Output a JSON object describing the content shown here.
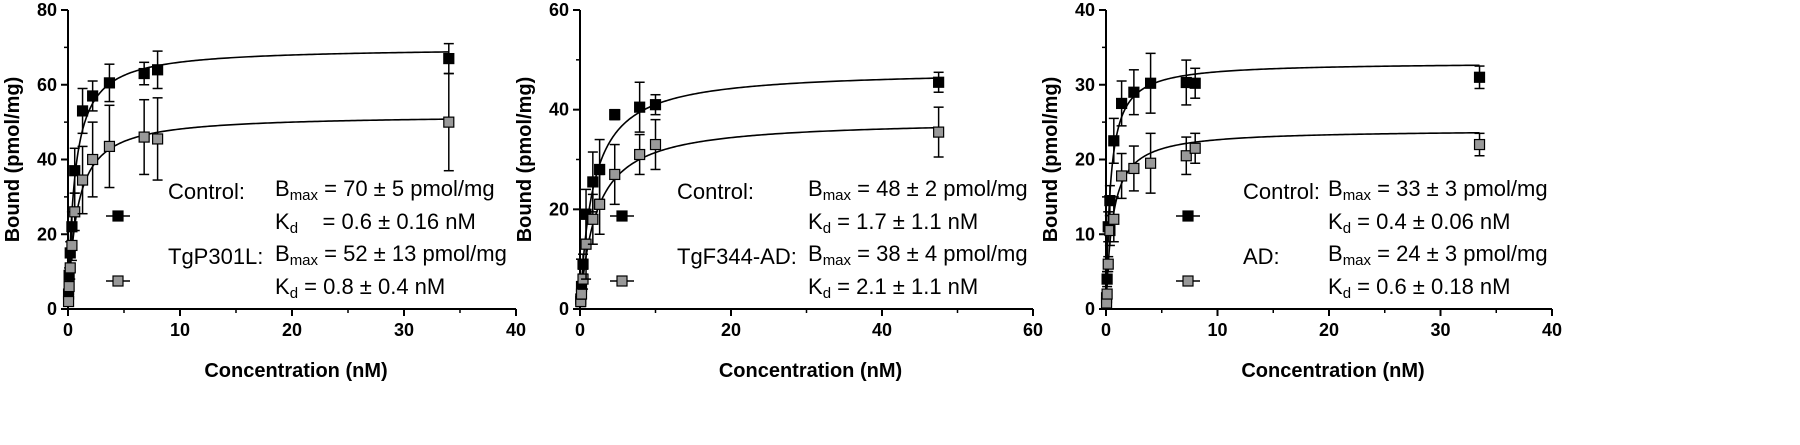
{
  "chart_data": [
    {
      "type": "scatter",
      "xlabel": "Concentration (nM)",
      "ylabel": "Bound (pmol/mg)",
      "xlim": [
        0,
        40
      ],
      "ylim": [
        0,
        80
      ],
      "xticks": [
        "0",
        "10",
        "20",
        "30",
        "40"
      ],
      "yticks": [
        "0",
        "20",
        "40",
        "60",
        "80"
      ],
      "series": [
        {
          "name": "Control:",
          "marker_color": "#000000",
          "fit": {
            "bmax": 70,
            "kd": 0.6
          },
          "points": [
            {
              "x": 0.05,
              "y": 4,
              "err": 1
            },
            {
              "x": 0.1,
              "y": 9,
              "err": 2
            },
            {
              "x": 0.2,
              "y": 15,
              "err": 3
            },
            {
              "x": 0.35,
              "y": 22,
              "err": 4
            },
            {
              "x": 0.6,
              "y": 37,
              "err": 6
            },
            {
              "x": 1.3,
              "y": 53,
              "err": 6
            },
            {
              "x": 2.2,
              "y": 57,
              "err": 4
            },
            {
              "x": 3.7,
              "y": 60.5,
              "err": 5
            },
            {
              "x": 6.8,
              "y": 63,
              "err": 3
            },
            {
              "x": 8,
              "y": 64,
              "err": 5
            },
            {
              "x": 34,
              "y": 67,
              "err": 4
            }
          ],
          "legend_lines": [
            "B<sub>max</sub> = 70 ± 5 pmol/mg",
            "K<sub>d</sub>&nbsp;&nbsp;&nbsp; = 0.6 ± 0.16 nM"
          ]
        },
        {
          "name": "TgP301L:",
          "marker_color": "#999999",
          "fit": {
            "bmax": 52,
            "kd": 0.8
          },
          "points": [
            {
              "x": 0.05,
              "y": 2,
              "err": 1
            },
            {
              "x": 0.1,
              "y": 6,
              "err": 2
            },
            {
              "x": 0.2,
              "y": 11,
              "err": 3
            },
            {
              "x": 0.35,
              "y": 17,
              "err": 4
            },
            {
              "x": 0.6,
              "y": 26,
              "err": 5
            },
            {
              "x": 1.3,
              "y": 34.5,
              "err": 9
            },
            {
              "x": 2.2,
              "y": 40,
              "err": 10
            },
            {
              "x": 3.7,
              "y": 43.5,
              "err": 11
            },
            {
              "x": 6.8,
              "y": 46,
              "err": 10
            },
            {
              "x": 8,
              "y": 45.5,
              "err": 11
            },
            {
              "x": 34,
              "y": 50,
              "err": 13
            }
          ],
          "legend_lines": [
            "B<sub>max</sub> = 52 ± 13 pmol/mg",
            "K<sub>d</sub> = 0.8 ± 0.4 nM"
          ]
        }
      ]
    },
    {
      "type": "scatter",
      "xlabel": "Concentration (nM)",
      "ylabel": "Bound (pmol/mg)",
      "xlim": [
        0,
        60
      ],
      "ylim": [
        0,
        60
      ],
      "xticks": [
        "0",
        "20",
        "40",
        "60"
      ],
      "yticks": [
        "0",
        "20",
        "40",
        "60"
      ],
      "series": [
        {
          "name": "Control:",
          "marker_color": "#000000",
          "fit": {
            "bmax": 48,
            "kd": 1.7
          },
          "points": [
            {
              "x": 0.1,
              "y": 2,
              "err": 1
            },
            {
              "x": 0.2,
              "y": 4.5,
              "err": 1
            },
            {
              "x": 0.4,
              "y": 9,
              "err": 2
            },
            {
              "x": 0.8,
              "y": 19,
              "err": 5
            },
            {
              "x": 1.7,
              "y": 25.5,
              "err": 6
            },
            {
              "x": 2.6,
              "y": 28,
              "err": 6
            },
            {
              "x": 4.6,
              "y": 39,
              "err": 1
            },
            {
              "x": 7.9,
              "y": 40.5,
              "err": 5
            },
            {
              "x": 10,
              "y": 41,
              "err": 2
            },
            {
              "x": 47.5,
              "y": 45.5,
              "err": 2
            }
          ],
          "legend_lines": [
            "B<sub>max</sub> = 48 ± 2 pmol/mg",
            "K<sub>d</sub> = 1.7 ± 1.1 nM"
          ]
        },
        {
          "name": "TgF344-AD:",
          "marker_color": "#999999",
          "fit": {
            "bmax": 38,
            "kd": 2.1
          },
          "points": [
            {
              "x": 0.1,
              "y": 1.5,
              "err": 1
            },
            {
              "x": 0.2,
              "y": 3,
              "err": 1
            },
            {
              "x": 0.4,
              "y": 6,
              "err": 2
            },
            {
              "x": 0.8,
              "y": 13,
              "err": 7
            },
            {
              "x": 1.7,
              "y": 18,
              "err": 5
            },
            {
              "x": 2.6,
              "y": 21,
              "err": 6
            },
            {
              "x": 4.6,
              "y": 27,
              "err": 6
            },
            {
              "x": 7.9,
              "y": 31,
              "err": 4
            },
            {
              "x": 10,
              "y": 33,
              "err": 5
            },
            {
              "x": 47.5,
              "y": 35.5,
              "err": 5
            }
          ],
          "legend_lines": [
            "B<sub>max</sub> = 38 ± 4 pmol/mg",
            "K<sub>d</sub> = 2.1 ± 1.1 nM"
          ]
        }
      ]
    },
    {
      "type": "scatter",
      "xlabel": "Concentration (nM)",
      "ylabel": "Bound (pmol/mg)",
      "xlim": [
        0,
        40
      ],
      "ylim": [
        0,
        40
      ],
      "xticks": [
        "0",
        "10",
        "20",
        "30",
        "40"
      ],
      "yticks": [
        "0",
        "10",
        "20",
        "30",
        "40"
      ],
      "series": [
        {
          "name": "Control:",
          "marker_color": "#000000",
          "fit": {
            "bmax": 33,
            "kd": 0.4
          },
          "points": [
            {
              "x": 0.05,
              "y": 1.5,
              "err": 0.5
            },
            {
              "x": 0.1,
              "y": 4,
              "err": 1
            },
            {
              "x": 0.2,
              "y": 11,
              "err": 2
            },
            {
              "x": 0.35,
              "y": 14.5,
              "err": 2
            },
            {
              "x": 0.7,
              "y": 22.5,
              "err": 3
            },
            {
              "x": 1.4,
              "y": 27.5,
              "err": 3
            },
            {
              "x": 2.5,
              "y": 29,
              "err": 3
            },
            {
              "x": 4,
              "y": 30.2,
              "err": 4
            },
            {
              "x": 7.2,
              "y": 30.3,
              "err": 3
            },
            {
              "x": 8,
              "y": 30.2,
              "err": 2
            },
            {
              "x": 33.5,
              "y": 31,
              "err": 1.5
            }
          ],
          "legend_lines": [
            "B<sub>max</sub> = 33 ± 3 pmol/mg",
            "K<sub>d</sub> = 0.4 ± 0.06 nM"
          ]
        },
        {
          "name": "AD:",
          "marker_color": "#999999",
          "fit": {
            "bmax": 24,
            "kd": 0.6
          },
          "points": [
            {
              "x": 0.05,
              "y": 0.8,
              "err": 0.3
            },
            {
              "x": 0.1,
              "y": 2,
              "err": 0.5
            },
            {
              "x": 0.2,
              "y": 6,
              "err": 1
            },
            {
              "x": 0.35,
              "y": 10.5,
              "err": 2
            },
            {
              "x": 0.7,
              "y": 12,
              "err": 3
            },
            {
              "x": 1.4,
              "y": 17.8,
              "err": 3
            },
            {
              "x": 2.5,
              "y": 18.8,
              "err": 3
            },
            {
              "x": 4,
              "y": 19.5,
              "err": 4
            },
            {
              "x": 7.2,
              "y": 20.5,
              "err": 2.5
            },
            {
              "x": 8,
              "y": 21.5,
              "err": 2
            },
            {
              "x": 33.5,
              "y": 22,
              "err": 1.5
            }
          ],
          "legend_lines": [
            "B<sub>max</sub> = 24 ± 3 pmol/mg",
            "K<sub>d</sub> = 0.6 ± 0.18 nM"
          ]
        }
      ]
    }
  ]
}
